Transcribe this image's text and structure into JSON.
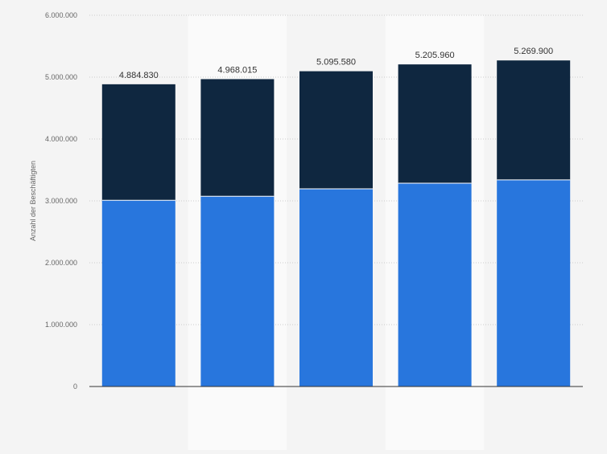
{
  "chart_data": {
    "type": "bar",
    "stacked": true,
    "title": "",
    "xlabel": "",
    "ylabel": "Anzahl der Beschäftigten",
    "ylim": [
      0,
      6000000
    ],
    "yticks": [
      0,
      1000000,
      2000000,
      3000000,
      4000000,
      5000000,
      6000000
    ],
    "ytick_labels": [
      "0",
      "1.000.000",
      "2.000.000",
      "3.000.000",
      "4.000.000",
      "5.000.000",
      "6.000.000"
    ],
    "categories": [
      "",
      "",
      "",
      "",
      ""
    ],
    "series": [
      {
        "color": "#2876dd",
        "values": [
          3010000,
          3075000,
          3195000,
          3285000,
          3340000
        ]
      },
      {
        "color": "#0f2740",
        "values": [
          1874830,
          1893015,
          1900580,
          1920960,
          1929900
        ]
      }
    ],
    "totals": [
      4884830,
      4968015,
      5095580,
      5205960,
      5269900
    ],
    "total_labels": [
      "4.884.830",
      "4.968.015",
      "5.095.580",
      "5.205.960",
      "5.269.900"
    ],
    "grid": true,
    "legend": "none"
  }
}
